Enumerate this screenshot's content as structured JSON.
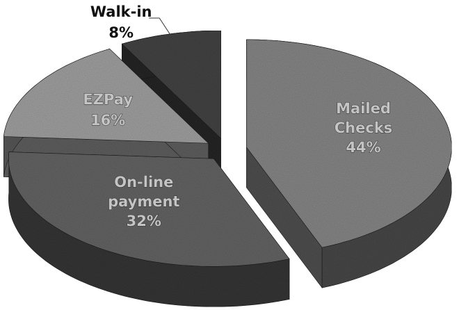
{
  "chart_data": {
    "type": "pie3d",
    "categories": [
      "Mailed Checks",
      "On-line payment",
      "EZPay",
      "Walk-in"
    ],
    "values": [
      44,
      32,
      16,
      8
    ],
    "value_labels": [
      "44%",
      "32%",
      "16%",
      "8%"
    ],
    "colors": [
      "#8e8e8e",
      "#6a6a6a",
      "#a9a9a9",
      "#4a4a4a"
    ],
    "exploded": true
  }
}
